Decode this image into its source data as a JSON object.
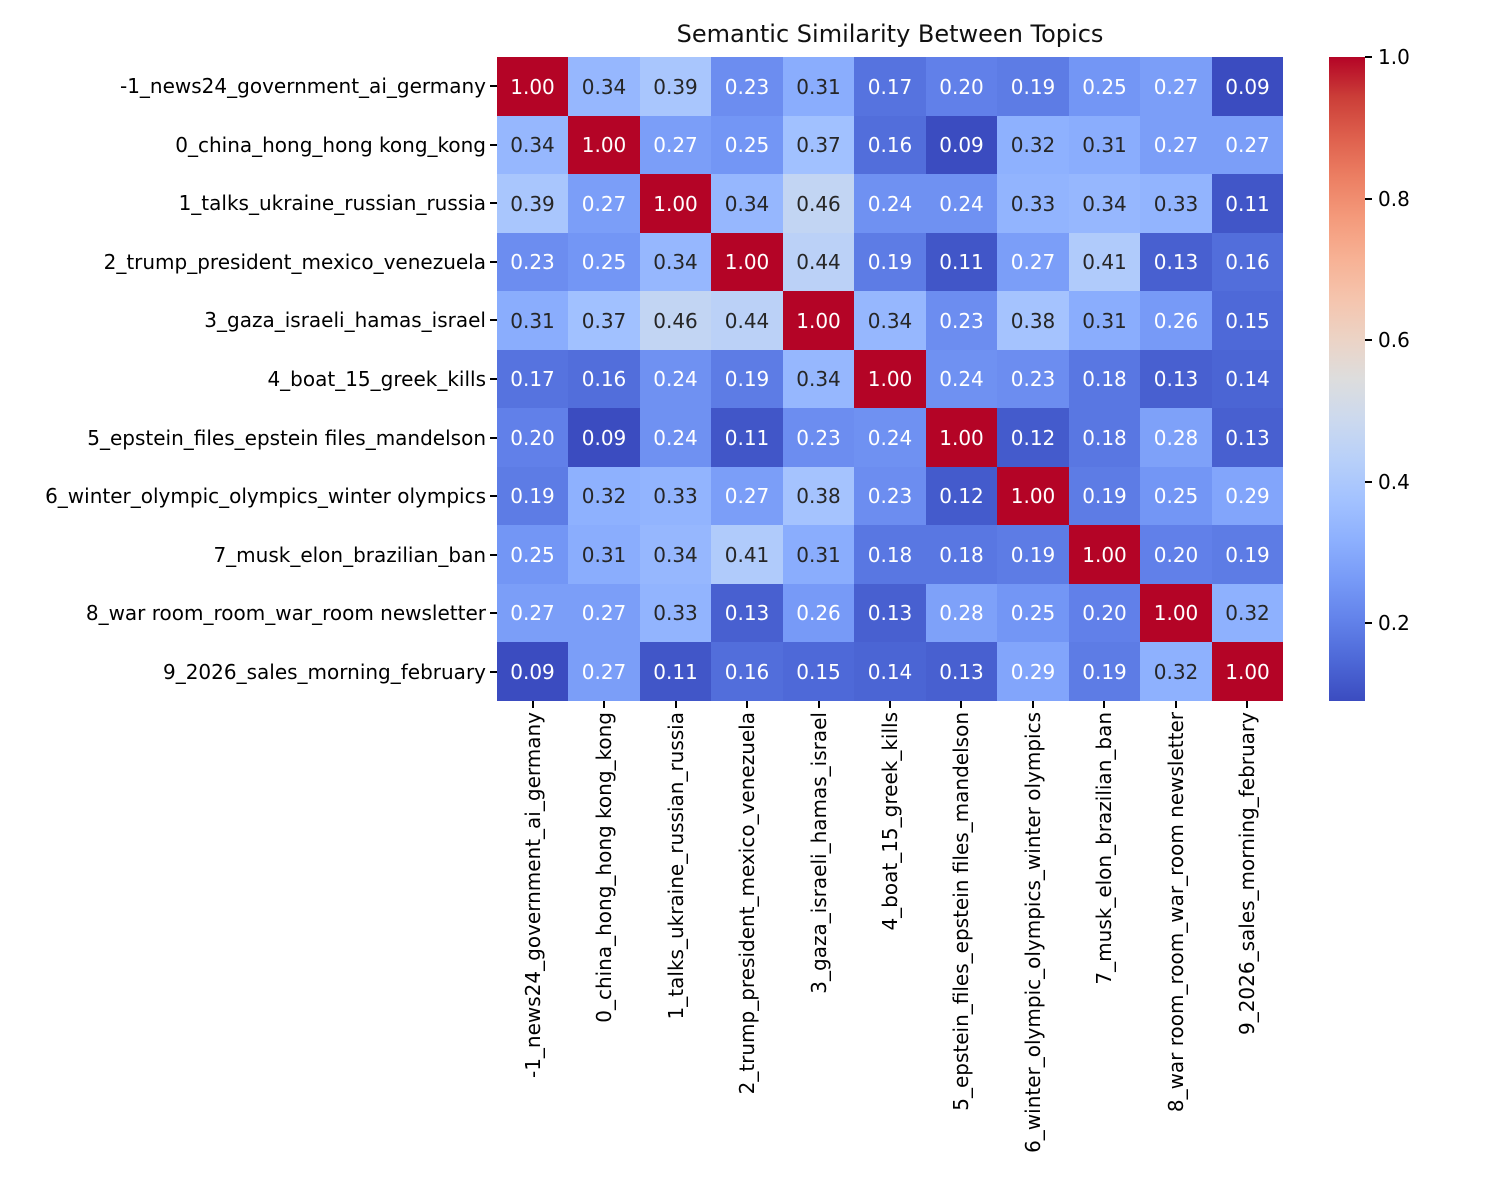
{
  "chart_data": {
    "type": "heatmap",
    "title": "Semantic Similarity Between Topics",
    "labels": [
      "-1_news24_government_ai_germany",
      "0_china_hong_hong kong_kong",
      "1_talks_ukraine_russian_russia",
      "2_trump_president_mexico_venezuela",
      "3_gaza_israeli_hamas_israel",
      "4_boat_15_greek_kills",
      "5_epstein_files_epstein files_mandelson",
      "6_winter_olympic_olympics_winter olympics",
      "7_musk_elon_brazilian_ban",
      "8_war room_room_war_room newsletter",
      "9_2026_sales_morning_february"
    ],
    "matrix": [
      [
        1.0,
        0.34,
        0.39,
        0.23,
        0.31,
        0.17,
        0.2,
        0.19,
        0.25,
        0.27,
        0.09
      ],
      [
        0.34,
        1.0,
        0.27,
        0.25,
        0.37,
        0.16,
        0.09,
        0.32,
        0.31,
        0.27,
        0.27
      ],
      [
        0.39,
        0.27,
        1.0,
        0.34,
        0.46,
        0.24,
        0.24,
        0.33,
        0.34,
        0.33,
        0.11
      ],
      [
        0.23,
        0.25,
        0.34,
        1.0,
        0.44,
        0.19,
        0.11,
        0.27,
        0.41,
        0.13,
        0.16
      ],
      [
        0.31,
        0.37,
        0.46,
        0.44,
        1.0,
        0.34,
        0.23,
        0.38,
        0.31,
        0.26,
        0.15
      ],
      [
        0.17,
        0.16,
        0.24,
        0.19,
        0.34,
        1.0,
        0.24,
        0.23,
        0.18,
        0.13,
        0.14
      ],
      [
        0.2,
        0.09,
        0.24,
        0.11,
        0.23,
        0.24,
        1.0,
        0.12,
        0.18,
        0.28,
        0.13
      ],
      [
        0.19,
        0.32,
        0.33,
        0.27,
        0.38,
        0.23,
        0.12,
        1.0,
        0.19,
        0.25,
        0.29
      ],
      [
        0.25,
        0.31,
        0.34,
        0.41,
        0.31,
        0.18,
        0.18,
        0.19,
        1.0,
        0.2,
        0.19
      ],
      [
        0.27,
        0.27,
        0.33,
        0.13,
        0.26,
        0.13,
        0.28,
        0.25,
        0.2,
        1.0,
        0.32
      ],
      [
        0.09,
        0.27,
        0.11,
        0.16,
        0.15,
        0.14,
        0.13,
        0.29,
        0.19,
        0.32,
        1.0
      ]
    ],
    "vmin": 0.09,
    "vmax": 1.0,
    "colormap": "coolwarm",
    "colorbar_position": "right",
    "colorbar_ticks": [
      "1.0",
      "0.8",
      "0.6",
      "0.4",
      "0.2"
    ],
    "colorbar_tick_values": [
      1.0,
      0.8,
      0.6,
      0.4,
      0.2
    ],
    "annotation_format": "two-decimals",
    "grid": "off"
  },
  "colors": {
    "background": "#ffffff",
    "label_text": "#000000",
    "annotation_dark": "#262626",
    "annotation_light": "#ffffff",
    "tick": "#000000",
    "colormap_low": "#3b4cc0",
    "colormap_mid": "#dddddd",
    "colormap_high": "#b40426",
    "colormap_stops": [
      [
        59,
        76,
        192
      ],
      [
        77,
        104,
        215
      ],
      [
        98,
        130,
        234
      ],
      [
        119,
        154,
        247
      ],
      [
        141,
        176,
        254
      ],
      [
        163,
        194,
        255
      ],
      [
        184,
        208,
        249
      ],
      [
        204,
        217,
        238
      ],
      [
        221,
        221,
        221
      ],
      [
        236,
        211,
        197
      ],
      [
        245,
        196,
        173
      ],
      [
        247,
        177,
        148
      ],
      [
        244,
        154,
        123
      ],
      [
        236,
        127,
        99
      ],
      [
        222,
        96,
        77
      ],
      [
        203,
        62,
        56
      ],
      [
        180,
        4,
        38
      ]
    ]
  }
}
